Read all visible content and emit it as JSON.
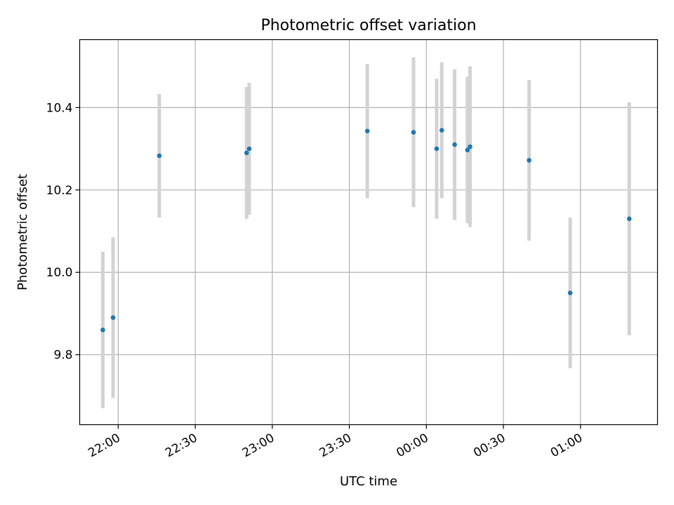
{
  "chart_data": {
    "type": "scatter",
    "title": "Photometric offset variation",
    "xlabel": "UTC time",
    "ylabel": "Photometric offset",
    "x_axis_type": "time",
    "xlim": [
      "21:45",
      "01:30"
    ],
    "ylim": [
      9.63,
      10.565
    ],
    "grid": true,
    "x_ticks": [
      "22:00",
      "22:30",
      "23:00",
      "23:30",
      "00:00",
      "00:30",
      "01:00"
    ],
    "y_ticks": [
      "9.8",
      "10.0",
      "10.2",
      "10.4"
    ],
    "y_tick_values": [
      9.8,
      10.0,
      10.2,
      10.4
    ],
    "colors": {
      "point": "#1f77b4",
      "errorbar": "#d3d3d3",
      "grid": "#b0b0b0"
    },
    "points": [
      {
        "x": "21:54",
        "y": 9.86,
        "err": 0.19
      },
      {
        "x": "21:58",
        "y": 9.89,
        "err": 0.195
      },
      {
        "x": "22:16",
        "y": 10.283,
        "err": 0.15
      },
      {
        "x": "22:50",
        "y": 10.29,
        "err": 0.16
      },
      {
        "x": "22:51",
        "y": 10.3,
        "err": 0.16
      },
      {
        "x": "23:37",
        "y": 10.343,
        "err": 0.163
      },
      {
        "x": "23:55",
        "y": 10.34,
        "err": 0.182
      },
      {
        "x": "00:04",
        "y": 10.3,
        "err": 0.17
      },
      {
        "x": "00:06",
        "y": 10.345,
        "err": 0.165
      },
      {
        "x": "00:11",
        "y": 10.31,
        "err": 0.183
      },
      {
        "x": "00:16",
        "y": 10.297,
        "err": 0.178
      },
      {
        "x": "00:17",
        "y": 10.305,
        "err": 0.195
      },
      {
        "x": "00:40",
        "y": 10.272,
        "err": 0.195
      },
      {
        "x": "00:56",
        "y": 9.95,
        "err": 0.183
      },
      {
        "x": "01:19",
        "y": 10.13,
        "err": 0.283
      }
    ]
  }
}
